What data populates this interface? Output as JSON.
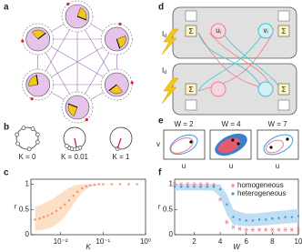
{
  "labels": [
    "a",
    "b",
    "c",
    "d",
    "e",
    "f"
  ],
  "panel_b": {
    "labels": [
      "K = 0",
      "K = 0.01",
      "K = 1"
    ]
  },
  "panel_d": {
    "inputs": [
      {
        "main": "I",
        "sub": "d"
      },
      {
        "main": "I",
        "sub": "d"
      }
    ],
    "sums": [
      "Σ",
      "Σ",
      "Σ",
      "Σ"
    ],
    "nodes": [
      {
        "main": "u",
        "sub": "i"
      },
      {
        "main": "v",
        "sub": "i"
      }
    ]
  },
  "panel_e": {
    "titles": [
      "W = 2",
      "W = 4",
      "W = 7"
    ],
    "ylabel": "v",
    "xlabels": [
      "u",
      "u",
      "u"
    ]
  },
  "chart_data": [
    {
      "type": "scatter",
      "xlabel": "K",
      "ylabel": "r",
      "xlog": true,
      "xlim": [
        0.002,
        1
      ],
      "ylim": [
        0,
        1.1
      ],
      "xticks": [
        {
          "value": 0.01,
          "label": "10⁻²"
        },
        {
          "value": 0.1,
          "label": "10⁻¹"
        },
        {
          "value": 1,
          "label": "10⁰"
        }
      ],
      "yticks": [
        0,
        0.5,
        1
      ],
      "color": "#e8956b",
      "band_color": "#fbd9bd",
      "marker": "dot",
      "x": [
        0.0025,
        0.0032,
        0.004,
        0.005,
        0.0063,
        0.008,
        0.01,
        0.0126,
        0.0158,
        0.02,
        0.025,
        0.032,
        0.04,
        0.05,
        0.063,
        0.08,
        0.1,
        0.16,
        0.25,
        0.4,
        0.63,
        1.0
      ],
      "values": [
        0.3,
        0.32,
        0.35,
        0.38,
        0.42,
        0.47,
        0.53,
        0.6,
        0.68,
        0.77,
        0.85,
        0.92,
        0.96,
        0.98,
        0.99,
        1,
        1,
        1,
        1,
        1,
        1,
        1
      ],
      "band_lower": [
        0.08,
        0.09,
        0.1,
        0.12,
        0.15,
        0.2,
        0.27,
        0.36,
        0.47,
        0.6,
        0.72,
        0.83,
        0.9,
        0.95,
        0.97,
        0.98,
        0.99,
        0.99,
        1,
        1,
        1,
        1
      ],
      "band_upper": [
        0.55,
        0.58,
        0.62,
        0.66,
        0.7,
        0.76,
        0.82,
        0.88,
        0.93,
        0.97,
        0.99,
        1,
        1,
        1,
        1,
        1,
        1,
        1,
        1,
        1,
        1,
        1
      ]
    },
    {
      "type": "scatter",
      "xlabel": "W",
      "ylabel": "r",
      "xlog": false,
      "xlim": [
        0.5,
        10
      ],
      "ylim": [
        0,
        1.1
      ],
      "xticks": [
        2,
        4,
        6,
        8,
        10
      ],
      "yticks": [
        0,
        0.5,
        1
      ],
      "legend": "upper right",
      "x": [
        0.5,
        1,
        1.5,
        2,
        2.5,
        3,
        3.5,
        4,
        4.5,
        5,
        5.5,
        6,
        6.5,
        7,
        7.5,
        8,
        8.5,
        9,
        9.5,
        10
      ],
      "series": [
        {
          "name": "homogeneous",
          "color": "#ee7f8e",
          "marker": "star",
          "values": [
            1,
            1,
            1,
            1,
            1,
            1,
            0.99,
            0.7,
            0.25,
            0.15,
            0.12,
            0.1,
            0.1,
            0.1,
            0.1,
            0.1,
            0.1,
            0.1,
            0.1,
            0.1
          ]
        },
        {
          "name": "heterogeneous",
          "color": "#3d9ad6",
          "marker": "dot",
          "band_color": "#b3d8f1",
          "values": [
            0.95,
            0.95,
            0.95,
            0.95,
            0.95,
            0.95,
            0.95,
            0.9,
            0.6,
            0.35,
            0.3,
            0.28,
            0.28,
            0.3,
            0.3,
            0.32,
            0.33,
            0.35,
            0.35,
            0.37
          ],
          "band_lower": [
            0.88,
            0.88,
            0.88,
            0.88,
            0.88,
            0.88,
            0.87,
            0.75,
            0.4,
            0.2,
            0.18,
            0.17,
            0.17,
            0.18,
            0.19,
            0.2,
            0.21,
            0.22,
            0.23,
            0.24
          ],
          "band_upper": [
            1,
            1,
            1,
            1,
            1,
            1,
            1,
            1,
            0.8,
            0.5,
            0.45,
            0.42,
            0.42,
            0.43,
            0.44,
            0.46,
            0.47,
            0.48,
            0.5,
            0.5
          ]
        }
      ]
    }
  ]
}
